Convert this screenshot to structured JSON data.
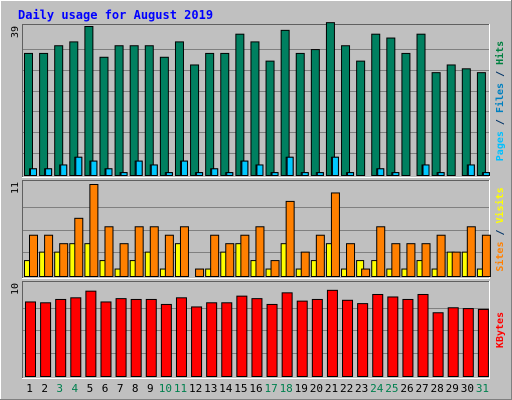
{
  "chart_data": [
    {
      "type": "bar",
      "panel": "top",
      "title": "Daily usage for August 2019",
      "ytick_max": "39",
      "ylim": [
        0,
        39
      ],
      "categories": [
        "1",
        "2",
        "3",
        "4",
        "5",
        "6",
        "7",
        "8",
        "9",
        "10",
        "11",
        "12",
        "13",
        "14",
        "15",
        "16",
        "17",
        "18",
        "19",
        "20",
        "21",
        "22",
        "23",
        "24",
        "25",
        "26",
        "27",
        "28",
        "29",
        "30",
        "31"
      ],
      "ylabel_parts": [
        {
          "text": "Pages",
          "color": "#00c0ff"
        },
        {
          "text": " / ",
          "color": "#003366"
        },
        {
          "text": "Files",
          "color": "#0080c0"
        },
        {
          "text": " / ",
          "color": "#003366"
        },
        {
          "text": "Hits",
          "color": "#008040"
        }
      ],
      "series": [
        {
          "name": "Hits",
          "color": "#008060",
          "values": [
            32,
            32,
            34,
            35,
            39,
            31,
            34,
            34,
            34,
            31,
            35,
            29,
            32,
            32,
            37,
            35,
            30,
            38,
            32,
            33,
            40,
            34,
            30,
            37,
            36,
            32,
            37,
            27,
            29,
            28,
            27
          ]
        },
        {
          "name": "Files",
          "color": "#0090c0",
          "values": [
            2,
            2,
            3,
            5,
            4,
            2,
            1,
            4,
            3,
            1,
            4,
            1,
            2,
            1,
            4,
            3,
            1,
            5,
            1,
            1,
            5,
            1,
            0,
            2,
            1,
            0,
            3,
            1,
            0,
            3,
            1
          ]
        },
        {
          "name": "Pages",
          "color": "#00c8ff",
          "values": [
            2,
            2,
            3,
            5,
            4,
            2,
            1,
            4,
            3,
            1,
            4,
            1,
            2,
            1,
            4,
            3,
            1,
            5,
            1,
            1,
            5,
            1,
            0,
            2,
            1,
            0,
            3,
            1,
            0,
            3,
            1
          ]
        }
      ]
    },
    {
      "type": "bar",
      "panel": "middle",
      "ytick_max": "11",
      "ylim": [
        0,
        11
      ],
      "ylabel_parts": [
        {
          "text": "Sites",
          "color": "#ff8000"
        },
        {
          "text": " / ",
          "color": "#003366"
        },
        {
          "text": "Visits",
          "color": "#ffff00"
        }
      ],
      "series": [
        {
          "name": "Visits",
          "color": "#ffff00",
          "values": [
            2,
            3,
            3,
            4,
            4,
            2,
            1,
            2,
            3,
            1,
            4,
            0,
            1,
            3,
            4,
            2,
            1,
            4,
            1,
            2,
            4,
            1,
            2,
            2,
            1,
            1,
            2,
            1,
            3,
            3,
            1
          ]
        },
        {
          "name": "Sites",
          "color": "#ff8000",
          "values": [
            5,
            5,
            4,
            7,
            11,
            6,
            4,
            6,
            6,
            5,
            6,
            1,
            5,
            4,
            5,
            6,
            2,
            9,
            3,
            5,
            10,
            4,
            1,
            6,
            4,
            4,
            4,
            5,
            3,
            6,
            5
          ]
        }
      ]
    },
    {
      "type": "bar",
      "panel": "bottom",
      "ytick_max": "10",
      "ylim": [
        0,
        10
      ],
      "ylabel_parts": [
        {
          "text": "KBytes",
          "color": "#ff0000"
        }
      ],
      "series": [
        {
          "name": "KBytes",
          "color": "#ff0000",
          "values": [
            9.1,
            9.0,
            9.4,
            9.6,
            10.4,
            9.1,
            9.5,
            9.4,
            9.4,
            8.8,
            9.6,
            8.5,
            9.0,
            9.0,
            9.8,
            9.5,
            8.8,
            10.2,
            9.2,
            9.4,
            10.5,
            9.3,
            8.9,
            10.0,
            9.7,
            9.4,
            10.0,
            7.8,
            8.4,
            8.3,
            8.2
          ]
        }
      ]
    }
  ],
  "weekend_days": [
    3,
    4,
    10,
    11,
    17,
    18,
    24,
    25,
    31
  ],
  "colors": {
    "background": "#c0c0c0",
    "grid": "#808080",
    "title": "#0000ff",
    "label_weekday": "#000000",
    "label_weekend": "#00804f"
  }
}
